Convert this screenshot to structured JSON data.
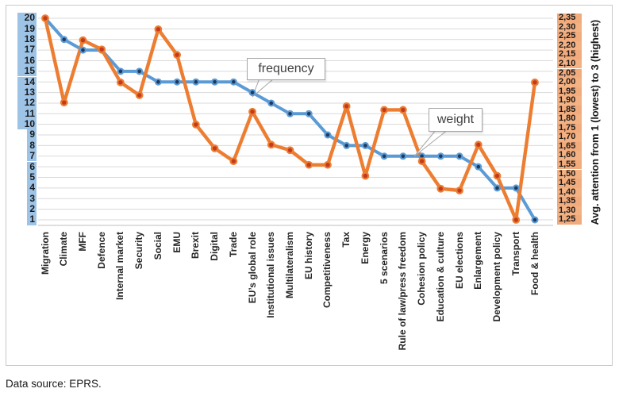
{
  "figure": {
    "data_source_note": "Data source: EPRS."
  },
  "chart_data": {
    "type": "line",
    "title": "",
    "grid": true,
    "legend_position": "none (callout labels on chart)",
    "categories": [
      "Migration",
      "Climate",
      "MFF",
      "Defence",
      "Internal market",
      "Security",
      "Social",
      "EMU",
      "Brexit",
      "Digital",
      "Trade",
      "EU’s global role",
      "Institutional issues",
      "Multilateralism",
      "EU history",
      "Competitiveness",
      "Tax",
      "Energy",
      "5 scenarios",
      "Rule of law/press freedom",
      "Cohesion policy",
      "Education & culture",
      "EU elections",
      "Enlargement",
      "Development policy",
      "Transport",
      "Food & health"
    ],
    "series": [
      {
        "name": "frequency",
        "axis": "left",
        "line_color": "#5B9BD5",
        "marker_color": "#1F3A5F",
        "values": [
          20,
          18,
          17,
          17,
          15,
          15,
          14,
          14,
          14,
          14,
          14,
          13,
          12,
          11,
          11,
          9,
          8,
          8,
          7,
          7,
          7,
          7,
          7,
          6,
          4,
          4,
          1
        ]
      },
      {
        "name": "weight",
        "axis": "right",
        "line_color": "#ED7D31",
        "marker_color": "#C23B1C",
        "values": [
          2.35,
          1.89,
          2.23,
          2.18,
          2.0,
          1.93,
          2.29,
          2.15,
          1.77,
          1.64,
          1.57,
          1.84,
          1.66,
          1.63,
          1.55,
          1.55,
          1.87,
          1.49,
          1.85,
          1.85,
          1.57,
          1.42,
          1.41,
          1.66,
          1.49,
          1.25,
          2.0
        ]
      }
    ],
    "left_axis": {
      "min": 1,
      "max": 20,
      "step": 1,
      "highlight_color": "#9DC3E6",
      "ticks": [
        "20",
        "19",
        "18",
        "17",
        "16",
        "15",
        "14",
        "13",
        "12",
        "11",
        "10",
        "9",
        "8",
        "7",
        "6",
        "5",
        "4",
        "3",
        "2",
        "1"
      ]
    },
    "right_axis": {
      "min": 1.25,
      "max": 2.35,
      "step": 0.05,
      "title": "Avg. attention from 1 (lowest) to 3 (highest)",
      "highlight_color": "#F4B183",
      "highlight_color_alt": "#F2AB7C",
      "ticks": [
        "2,35",
        "2,30",
        "2,25",
        "2,20",
        "2,15",
        "2,10",
        "2,05",
        "2,00",
        "1,95",
        "1,90",
        "1,85",
        "1,80",
        "1,75",
        "1,70",
        "1,65",
        "1,60",
        "1,55",
        "1,50",
        "1,45",
        "1,40",
        "1,35",
        "1,30",
        "1,25"
      ]
    },
    "annotations": [
      {
        "text": "frequency",
        "points_to_category": "EU’s global role"
      },
      {
        "text": "weight",
        "points_to_category": "Cohesion policy"
      }
    ]
  }
}
